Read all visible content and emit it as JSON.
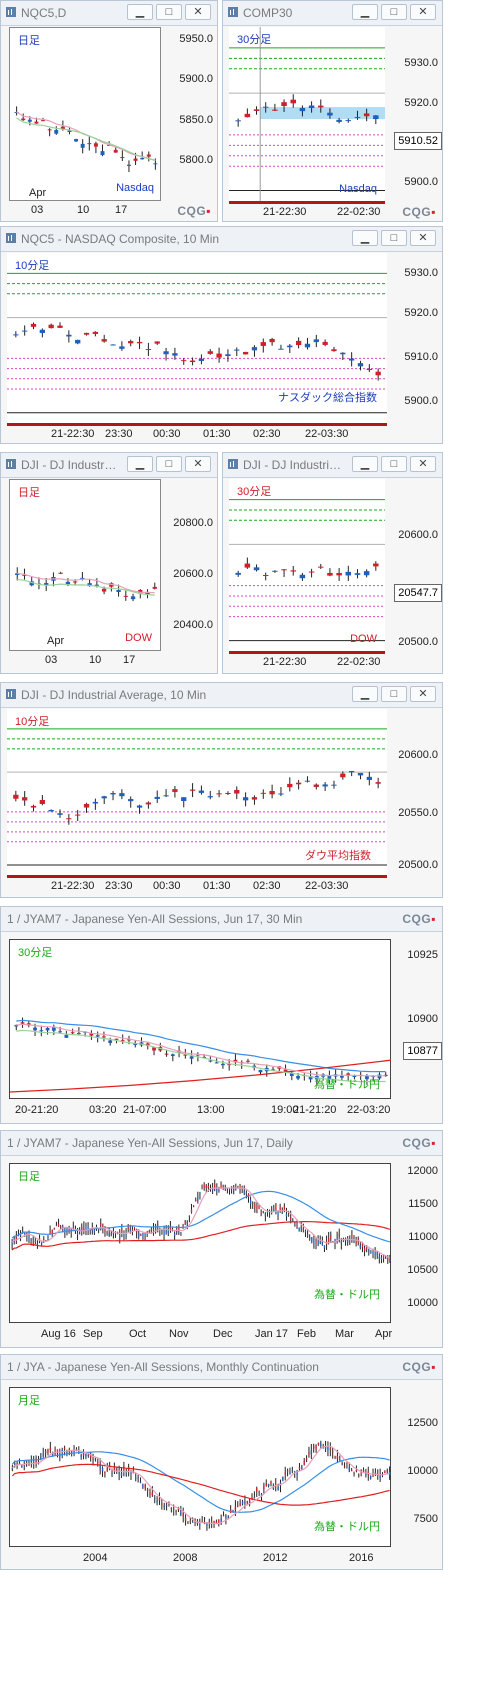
{
  "colors": {
    "up": "#1f5fbf",
    "down": "#d0202a",
    "ma_pink": "#e8a0b8",
    "ma_green": "#9ad29a",
    "ma_blue": "#3a8ee6",
    "ma_red": "#e02020",
    "level_green": "#1aa81a",
    "level_pink": "#e040c0",
    "level_gray": "#b0b0b0",
    "band_blue": "#8ecdf0"
  },
  "icons": {
    "chart_window": "chart-window-icon",
    "minimize": "minimize-icon",
    "maximize": "maximize-icon",
    "close": "close-icon"
  },
  "brand": {
    "logo": "CQG"
  },
  "charts": [
    {
      "title": "NQC5,D",
      "tf": "日足",
      "index_label": "Nasdaq",
      "y_labels": [
        "5950.0",
        "5900.0",
        "5850.0",
        "5800.0"
      ],
      "x_labels": [
        "Apr",
        "03",
        "10",
        "17"
      ]
    },
    {
      "title": "COMP30",
      "tf": "30分足",
      "index_label": "Nasdaq",
      "y_labels": [
        "5930.0",
        "5920.0",
        "5910.52",
        "5900.0"
      ],
      "last_price": "5910.52",
      "x_labels": [
        "21-22:30",
        "22-02:30"
      ]
    },
    {
      "title": "NQC5 - NASDAQ Composite, 10 Min",
      "tf": "10分足",
      "index_label": "ナスダック総合指数",
      "y_labels": [
        "5930.0",
        "5920.0",
        "5910.0",
        "5900.0"
      ],
      "x_labels": [
        "21-22:30",
        "23:30",
        "00:30",
        "01:30",
        "02:30",
        "22-03:30"
      ]
    },
    {
      "title": "DJI - DJ Industrial ...",
      "tf": "日足",
      "index_label": "DOW",
      "y_labels": [
        "20800.0",
        "20600.0",
        "20400.0"
      ],
      "x_labels": [
        "Apr",
        "03",
        "10",
        "17"
      ]
    },
    {
      "title": "DJI - DJ Industrial ...",
      "tf": "30分足",
      "index_label": "DOW",
      "y_labels": [
        "20600.0",
        "20547.7",
        "20500.0"
      ],
      "last_price": "20547.7",
      "x_labels": [
        "21-22:30",
        "22-02:30"
      ]
    },
    {
      "title": "DJI - DJ Industrial Average, 10 Min",
      "tf": "10分足",
      "index_label": "ダウ平均指数",
      "y_labels": [
        "20600.0",
        "20550.0",
        "20500.0"
      ],
      "x_labels": [
        "21-22:30",
        "23:30",
        "00:30",
        "01:30",
        "02:30",
        "22-03:30"
      ]
    },
    {
      "title": "1 / JYAM7 - Japanese Yen-All Sessions, Jun 17, 30 Min",
      "tf": "30分足",
      "index_label": "為替・ドル円",
      "y_labels": [
        "10925",
        "10900",
        "10877"
      ],
      "last_price": "10877",
      "x_labels": [
        "20-21:20",
        "03:20",
        "21-07:00",
        "13:00",
        "19:00",
        "21-21:20",
        "22-03:20"
      ]
    },
    {
      "title": "1 / JYAM7 - Japanese Yen-All Sessions, Jun 17, Daily",
      "tf": "日足",
      "index_label": "為替・ドル円",
      "y_labels": [
        "12000",
        "11500",
        "11000",
        "10500",
        "10000"
      ],
      "x_labels": [
        "Aug 16",
        "Sep",
        "Oct",
        "Nov",
        "Dec",
        "Jan 17",
        "Feb",
        "Mar",
        "Apr"
      ]
    },
    {
      "title": "1 / JYA - Japanese Yen-All Sessions, Monthly Continuation",
      "tf": "月足",
      "index_label": "為替・ドル円",
      "y_labels": [
        "12500",
        "10000",
        "7500"
      ],
      "x_labels": [
        "2004",
        "2008",
        "2012",
        "2016"
      ]
    }
  ]
}
